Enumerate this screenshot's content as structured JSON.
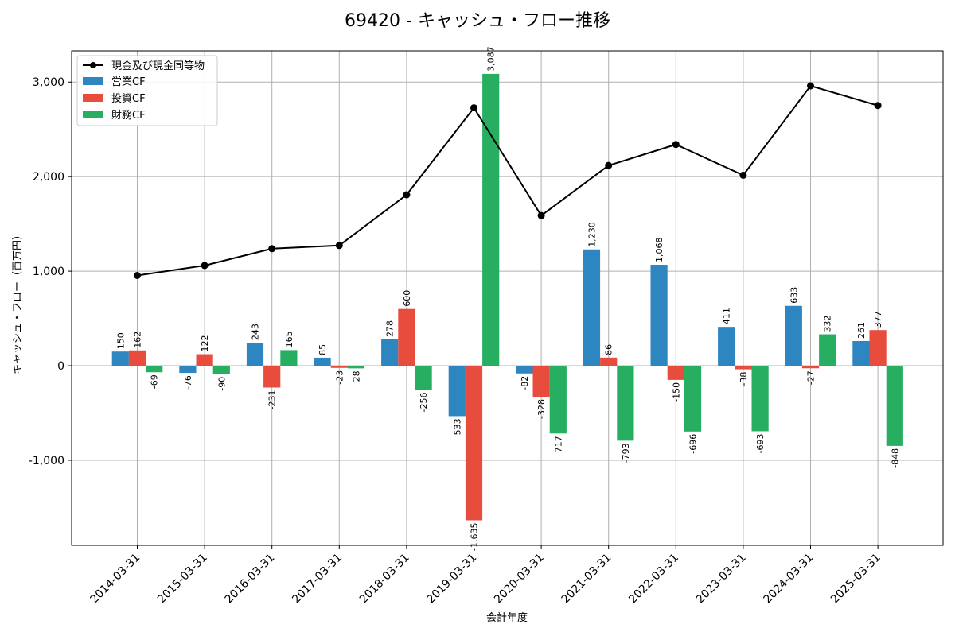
{
  "chart_data": {
    "type": "bar",
    "title": "69420 - キャッシュ・フロー推移",
    "xlabel": "会計年度",
    "ylabel": "キャッシュ・フロー（百万円）",
    "ylim": [
      -1900,
      3330
    ],
    "yticks": [
      -1000,
      0,
      1000,
      2000,
      3000
    ],
    "ytick_labels": [
      "-1,000",
      "0",
      "1,000",
      "2,000",
      "3,000"
    ],
    "grid": true,
    "legend_position": "top-left",
    "categories": [
      "2014-03-31",
      "2015-03-31",
      "2016-03-31",
      "2017-03-31",
      "2018-03-31",
      "2019-03-31",
      "2020-03-31",
      "2021-03-31",
      "2022-03-31",
      "2023-03-31",
      "2024-03-31",
      "2025-03-31"
    ],
    "series": [
      {
        "name": "営業CF",
        "kind": "bar",
        "color": "#2e86c1",
        "values": [
          150,
          -76,
          243,
          85,
          278,
          -533,
          -82,
          1230,
          1068,
          411,
          633,
          261
        ],
        "labels": [
          "150",
          "-76",
          "243",
          "85",
          "278",
          "-533",
          "-82",
          "1,230",
          "1,068",
          "411",
          "633",
          "261"
        ]
      },
      {
        "name": "投資CF",
        "kind": "bar",
        "color": "#e74c3c",
        "values": [
          162,
          122,
          -231,
          -23,
          600,
          -1635,
          -328,
          86,
          -150,
          -38,
          -27,
          377
        ],
        "labels": [
          "162",
          "122",
          "-231",
          "-23",
          "600",
          "-1,635",
          "-328",
          "86",
          "-150",
          "-38",
          "-27",
          "377"
        ]
      },
      {
        "name": "財務CF",
        "kind": "bar",
        "color": "#27ae60",
        "values": [
          -69,
          -90,
          165,
          -28,
          -256,
          3087,
          -717,
          -793,
          -696,
          -693,
          332,
          -848
        ],
        "labels": [
          "-69",
          "-90",
          "165",
          "-28",
          "-256",
          "3,087",
          "-717",
          "-793",
          "-696",
          "-693",
          "332",
          "-848"
        ]
      },
      {
        "name": "現金及び現金同等物",
        "kind": "line",
        "color": "#000000",
        "values": [
          955,
          1060,
          1238,
          1272,
          1808,
          2728,
          1588,
          2118,
          2340,
          2015,
          2960,
          2752
        ]
      }
    ]
  }
}
